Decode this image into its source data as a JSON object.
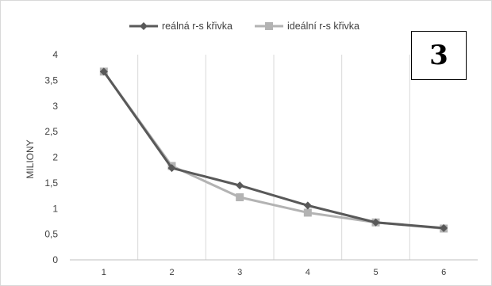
{
  "badge": "3",
  "chart_data": {
    "type": "line",
    "title": "",
    "xlabel": "",
    "ylabel": "MILIONY",
    "categories": [
      "1",
      "2",
      "3",
      "4",
      "5",
      "6"
    ],
    "ylim": [
      0,
      4
    ],
    "yticks": [
      "0",
      "0,5",
      "1",
      "1,5",
      "2",
      "2,5",
      "3",
      "3,5",
      "4"
    ],
    "grid": "vertical",
    "legend": "top",
    "series": [
      {
        "name": "reálná r-s křivka",
        "values": [
          3.67,
          1.79,
          1.45,
          1.06,
          0.73,
          0.62
        ],
        "color": "#595959",
        "marker": "diamond"
      },
      {
        "name": "ideální r-s křivka",
        "values": [
          3.67,
          1.83,
          1.22,
          0.92,
          0.73,
          0.61
        ],
        "color": "#b3b3b3",
        "marker": "square"
      }
    ]
  }
}
